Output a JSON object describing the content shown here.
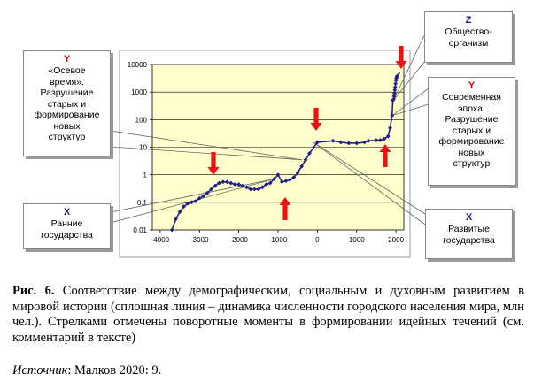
{
  "chart_data": {
    "type": "line",
    "title": "",
    "xlabel": "",
    "ylabel": "",
    "xlim": [
      -4200,
      2200
    ],
    "ylim": [
      0.01,
      10000
    ],
    "y_scale": "log",
    "grid": "horizontal",
    "legend": "none",
    "x_ticks": [
      -4000,
      -3000,
      -2000,
      -1000,
      0,
      1000,
      2000
    ],
    "x_tick_labels": [
      "-4000",
      "-3000",
      "-2000",
      "-1000",
      "0",
      "1000",
      "2000"
    ],
    "y_ticks": [
      0.01,
      0.1,
      1,
      10,
      100,
      1000,
      10000
    ],
    "y_tick_labels": [
      "0.01",
      "0.1",
      "1",
      "10",
      "100",
      "1000",
      "10000"
    ],
    "series": [
      {
        "color": "#1f1f8a",
        "x": [
          -3700,
          -3600,
          -3500,
          -3400,
          -3300,
          -3200,
          -3100,
          -3000,
          -2900,
          -2800,
          -2700,
          -2600,
          -2500,
          -2400,
          -2300,
          -2200,
          -2100,
          -2000,
          -1900,
          -1800,
          -1700,
          -1600,
          -1500,
          -1400,
          -1300,
          -1200,
          -1100,
          -1000,
          -900,
          -800,
          -700,
          -600,
          -500,
          -400,
          -300,
          -200,
          0,
          400,
          600,
          800,
          1000,
          1200,
          1300,
          1500,
          1600,
          1700,
          1800,
          1850,
          1900,
          1920,
          1940,
          1950,
          1960,
          1970,
          1980,
          1990,
          2000,
          2010,
          2020,
          2050,
          2100
        ],
        "y": [
          0.01,
          0.025,
          0.045,
          0.07,
          0.09,
          0.1,
          0.11,
          0.14,
          0.17,
          0.22,
          0.3,
          0.4,
          0.5,
          0.55,
          0.55,
          0.5,
          0.45,
          0.45,
          0.4,
          0.35,
          0.3,
          0.3,
          0.3,
          0.35,
          0.45,
          0.5,
          0.7,
          1.0,
          0.55,
          0.6,
          0.65,
          0.8,
          1.2,
          2.0,
          3.5,
          6.0,
          15,
          17,
          15,
          14,
          14,
          15,
          17,
          18,
          18,
          20,
          25,
          50,
          140,
          500,
          550,
          700,
          900,
          1200,
          1500,
          2000,
          2700,
          3200,
          3700,
          4300,
          5000
        ]
      }
    ]
  },
  "callouts": {
    "z": {
      "tag": "Z",
      "text": "Общество-\nорганизм"
    },
    "y_top": {
      "tag": "Y",
      "text": "«Осевое\nвремя».\nРазрушение\nстарых и\nформирование\nновых\nструктур"
    },
    "y_right": {
      "tag": "Y",
      "text": "Современная\nэпоха.\nРазрушение\nстарых и\nформирование\nновых\nструктур"
    },
    "x_left": {
      "tag": "X",
      "text": "Ранние\nгосударства"
    },
    "x_right": {
      "tag": "X",
      "text": "Развитые\nгосударства"
    }
  },
  "colors": {
    "plot_bg": "#ffffcc",
    "line": "#1f1f8a",
    "arrow": "#ee1111",
    "tag_red": "#dd0000",
    "tag_blue": "#1a1a88"
  },
  "caption": {
    "label": "Рис. 6.",
    "text": " Соответствие между демографическим, социальным и духовным развитием в мировой истории (сплошная линия – динамика численности городского населения мира, млн чел.). Стрелками отмечены поворотные моменты в формировании идейных течений (см. комментарий в тексте)"
  },
  "source": {
    "label": "Источник",
    "text": ": Малков 2020: 9."
  }
}
